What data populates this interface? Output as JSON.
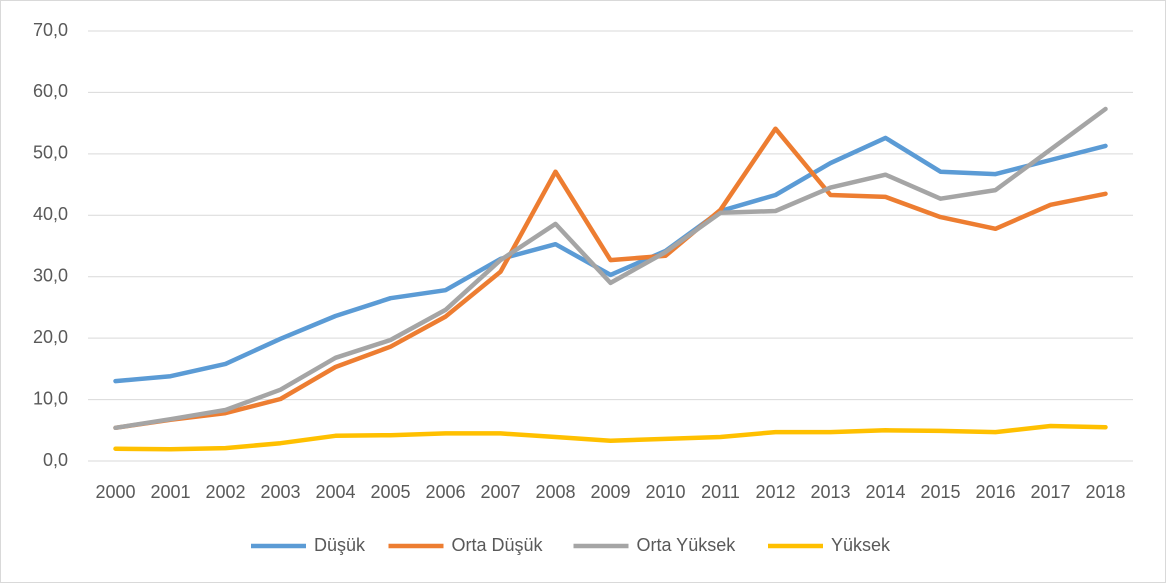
{
  "chart_data": {
    "type": "line",
    "categories": [
      "2000",
      "2001",
      "2002",
      "2003",
      "2004",
      "2005",
      "2006",
      "2007",
      "2008",
      "2009",
      "2010",
      "2011",
      "2012",
      "2013",
      "2014",
      "2015",
      "2016",
      "2017",
      "2018"
    ],
    "series": [
      {
        "name": "Düşük",
        "color": "#5b9bd5",
        "values": [
          13.0,
          13.8,
          15.8,
          19.9,
          23.6,
          26.5,
          27.8,
          32.9,
          35.3,
          30.3,
          34.2,
          40.7,
          43.3,
          48.5,
          52.6,
          47.1,
          46.7,
          49.0,
          51.3
        ]
      },
      {
        "name": "Orta Düşük",
        "color": "#ed7d31",
        "values": [
          5.4,
          6.7,
          7.8,
          10.1,
          15.3,
          18.6,
          23.5,
          30.8,
          47.1,
          32.7,
          33.4,
          40.9,
          54.1,
          43.3,
          43.0,
          39.7,
          37.8,
          41.7,
          43.5
        ]
      },
      {
        "name": "Orta Yüksek",
        "color": "#a5a5a5",
        "values": [
          5.4,
          6.8,
          8.3,
          11.6,
          16.8,
          19.7,
          24.6,
          32.7,
          38.6,
          29.0,
          34.0,
          40.4,
          40.7,
          44.5,
          46.6,
          42.7,
          44.1,
          50.7,
          57.3
        ]
      },
      {
        "name": "Yüksek",
        "color": "#ffc000",
        "values": [
          2.0,
          1.9,
          2.1,
          2.9,
          4.1,
          4.2,
          4.5,
          4.5,
          3.9,
          3.3,
          3.6,
          3.9,
          4.7,
          4.7,
          5.0,
          4.9,
          4.7,
          5.7,
          5.5
        ]
      }
    ],
    "ylim": [
      0,
      70
    ],
    "yticks": [
      {
        "value": 0,
        "label": "0,0"
      },
      {
        "value": 10,
        "label": "10,0"
      },
      {
        "value": 20,
        "label": "20,0"
      },
      {
        "value": 30,
        "label": "30,0"
      },
      {
        "value": 40,
        "label": "40,0"
      },
      {
        "value": 50,
        "label": "50,0"
      },
      {
        "value": 60,
        "label": "60,0"
      },
      {
        "value": 70,
        "label": "70,0"
      }
    ],
    "grid": true,
    "legend": "bottom"
  }
}
